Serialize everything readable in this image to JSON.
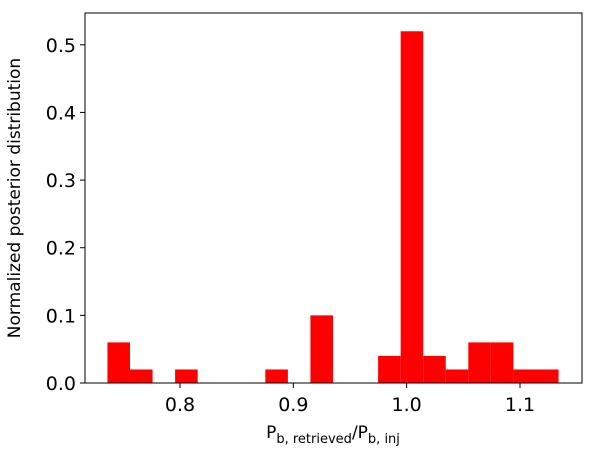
{
  "chart_data": {
    "type": "histogram",
    "xlabel": [
      {
        "text": "P"
      },
      {
        "text": "b, retrieved",
        "sub": true
      },
      {
        "text": "/P"
      },
      {
        "text": "b, inj",
        "sub": true
      }
    ],
    "ylabel": "Normalized posterior distribution",
    "bins": [
      0.736,
      0.7559,
      0.7758,
      0.7957,
      0.8156,
      0.8355,
      0.8554,
      0.8753,
      0.8952,
      0.9151,
      0.935,
      0.9549,
      0.9748,
      0.9947,
      1.0146,
      1.0345,
      1.0544,
      1.0743,
      1.0942,
      1.1141,
      1.134
    ],
    "values": [
      0.06,
      0.02,
      0,
      0.02,
      0,
      0,
      0,
      0.02,
      0,
      0.1,
      0,
      0,
      0.04,
      0.52,
      0.04,
      0.02,
      0.06,
      0.06,
      0.02,
      0.02
    ],
    "color": "#ff0000",
    "xlim": [
      0.7162,
      1.1547
    ],
    "ylim": [
      0,
      0.547
    ],
    "xticks": [
      0.8,
      0.9,
      {
        "value": 1,
        "label": "1.0"
      },
      1.1
    ],
    "yticks": [
      {
        "value": 0,
        "label": "0.0"
      },
      0.1,
      0.2,
      0.3,
      0.4,
      0.5
    ]
  }
}
